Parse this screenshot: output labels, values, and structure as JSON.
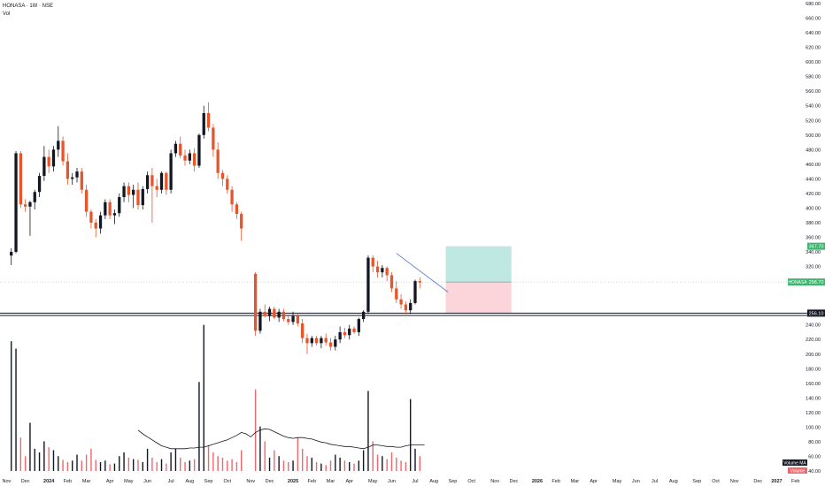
{
  "header": {
    "title": "HONASA · 1W · NSE",
    "volume_label": "Vol"
  },
  "colors": {
    "up": "#131722",
    "down": "#e8552b",
    "vol_up": "#131722",
    "vol_down": "#f0676c",
    "ma": "#131722",
    "target_zone": "#bfe8e3",
    "stop_zone": "#fbd5d9",
    "symbol_badge": "#3fb56f",
    "dark_badge": "#131722"
  },
  "chart_data": {
    "type": "candlestick",
    "price_axis": {
      "ylim": [
        40,
        680
      ],
      "ticks": [
        680,
        660,
        640,
        620,
        600,
        580,
        560,
        540,
        520,
        500,
        480,
        460,
        440,
        420,
        400,
        380,
        360,
        340,
        320,
        240,
        220,
        200,
        180,
        160,
        140,
        120,
        100,
        80,
        60,
        40
      ],
      "tick_labels": [
        "680.00",
        "660.00",
        "640.00",
        "620.00",
        "600.00",
        "580.00",
        "560.00",
        "540.00",
        "520.00",
        "500.00",
        "480.00",
        "460.00",
        "440.00",
        "420.00",
        "400.00",
        "380.00",
        "360.00",
        "340.00",
        "320.00",
        "240.00",
        "220.00",
        "200.00",
        "180.00",
        "160.00",
        "140.00",
        "120.00",
        "100.00",
        "80.00",
        "60.00",
        "40.00"
      ]
    },
    "time_axis": {
      "labels": [
        {
          "label": "Nov",
          "week": -1
        },
        {
          "label": "Dec",
          "week": 3
        },
        {
          "label": "2024",
          "week": 8,
          "bold": true
        },
        {
          "label": "Feb",
          "week": 12
        },
        {
          "label": "Mar",
          "week": 16
        },
        {
          "label": "Apr",
          "week": 21
        },
        {
          "label": "May",
          "week": 25
        },
        {
          "label": "Jun",
          "week": 29
        },
        {
          "label": "Jul",
          "week": 34
        },
        {
          "label": "Aug",
          "week": 38
        },
        {
          "label": "Sep",
          "week": 42
        },
        {
          "label": "Oct",
          "week": 46
        },
        {
          "label": "Nov",
          "week": 51
        },
        {
          "label": "Dec",
          "week": 55
        },
        {
          "label": "2025",
          "week": 60,
          "bold": true
        },
        {
          "label": "Feb",
          "week": 64
        },
        {
          "label": "Mar",
          "week": 68
        },
        {
          "label": "Apr",
          "week": 72
        },
        {
          "label": "May",
          "week": 77
        },
        {
          "label": "Jun",
          "week": 81
        },
        {
          "label": "Jul",
          "week": 86
        },
        {
          "label": "Aug",
          "week": 90
        },
        {
          "label": "Sep",
          "week": 94
        },
        {
          "label": "Oct",
          "week": 98
        },
        {
          "label": "Nov",
          "week": 103
        },
        {
          "label": "Dec",
          "week": 107
        },
        {
          "label": "2026",
          "week": 112,
          "bold": true
        },
        {
          "label": "Feb",
          "week": 116
        },
        {
          "label": "Mar",
          "week": 120
        },
        {
          "label": "Apr",
          "week": 124
        },
        {
          "label": "May",
          "week": 129
        },
        {
          "label": "Jun",
          "week": 133
        },
        {
          "label": "Jul",
          "week": 137
        },
        {
          "label": "Aug",
          "week": 141
        },
        {
          "label": "Sep",
          "week": 146
        },
        {
          "label": "Oct",
          "week": 150
        },
        {
          "label": "Nov",
          "week": 154
        },
        {
          "label": "Dec",
          "week": 159
        },
        {
          "label": "2027",
          "week": 163,
          "bold": true
        },
        {
          "label": "Feb",
          "week": 167
        }
      ],
      "week_range": [
        -2.4,
        169.5
      ]
    },
    "candles": [
      {
        "o": 335,
        "h": 345,
        "l": 322,
        "c": 340,
        "v": 175
      },
      {
        "o": 340,
        "h": 478,
        "l": 338,
        "c": 475,
        "v": 165
      },
      {
        "o": 475,
        "h": 478,
        "l": 400,
        "c": 405,
        "v": 45
      },
      {
        "o": 405,
        "h": 412,
        "l": 395,
        "c": 402,
        "v": 20
      },
      {
        "o": 402,
        "h": 410,
        "l": 362,
        "c": 408,
        "v": 65
      },
      {
        "o": 408,
        "h": 425,
        "l": 398,
        "c": 422,
        "v": 30
      },
      {
        "o": 422,
        "h": 448,
        "l": 415,
        "c": 444,
        "v": 25
      },
      {
        "o": 444,
        "h": 485,
        "l": 437,
        "c": 470,
        "v": 40
      },
      {
        "o": 470,
        "h": 480,
        "l": 448,
        "c": 457,
        "v": 32
      },
      {
        "o": 457,
        "h": 485,
        "l": 450,
        "c": 480,
        "v": 28
      },
      {
        "o": 480,
        "h": 512,
        "l": 470,
        "c": 492,
        "v": 20
      },
      {
        "o": 492,
        "h": 498,
        "l": 458,
        "c": 464,
        "v": 15
      },
      {
        "o": 464,
        "h": 475,
        "l": 432,
        "c": 440,
        "v": 12
      },
      {
        "o": 440,
        "h": 448,
        "l": 432,
        "c": 442,
        "v": 14
      },
      {
        "o": 442,
        "h": 455,
        "l": 435,
        "c": 450,
        "v": 22
      },
      {
        "o": 450,
        "h": 455,
        "l": 420,
        "c": 425,
        "v": 14
      },
      {
        "o": 425,
        "h": 432,
        "l": 388,
        "c": 395,
        "v": 22
      },
      {
        "o": 395,
        "h": 398,
        "l": 372,
        "c": 380,
        "v": 30
      },
      {
        "o": 380,
        "h": 385,
        "l": 360,
        "c": 372,
        "v": 15
      },
      {
        "o": 372,
        "h": 395,
        "l": 365,
        "c": 390,
        "v": 12
      },
      {
        "o": 390,
        "h": 412,
        "l": 385,
        "c": 408,
        "v": 14
      },
      {
        "o": 408,
        "h": 412,
        "l": 385,
        "c": 390,
        "v": 9
      },
      {
        "o": 390,
        "h": 398,
        "l": 378,
        "c": 393,
        "v": 10
      },
      {
        "o": 393,
        "h": 420,
        "l": 388,
        "c": 415,
        "v": 20
      },
      {
        "o": 415,
        "h": 435,
        "l": 408,
        "c": 430,
        "v": 25
      },
      {
        "o": 430,
        "h": 435,
        "l": 408,
        "c": 418,
        "v": 18
      },
      {
        "o": 418,
        "h": 432,
        "l": 400,
        "c": 425,
        "v": 16
      },
      {
        "o": 425,
        "h": 435,
        "l": 398,
        "c": 404,
        "v": 15
      },
      {
        "o": 404,
        "h": 430,
        "l": 398,
        "c": 426,
        "v": 12
      },
      {
        "o": 426,
        "h": 450,
        "l": 420,
        "c": 445,
        "v": 30
      },
      {
        "o": 445,
        "h": 455,
        "l": 380,
        "c": 430,
        "v": 18
      },
      {
        "o": 430,
        "h": 440,
        "l": 415,
        "c": 425,
        "v": 12
      },
      {
        "o": 425,
        "h": 450,
        "l": 420,
        "c": 448,
        "v": 16
      },
      {
        "o": 448,
        "h": 450,
        "l": 418,
        "c": 425,
        "v": 10
      },
      {
        "o": 425,
        "h": 480,
        "l": 420,
        "c": 475,
        "v": 25
      },
      {
        "o": 475,
        "h": 492,
        "l": 470,
        "c": 488,
        "v": 30
      },
      {
        "o": 488,
        "h": 498,
        "l": 468,
        "c": 472,
        "v": 18
      },
      {
        "o": 472,
        "h": 480,
        "l": 458,
        "c": 465,
        "v": 12
      },
      {
        "o": 465,
        "h": 480,
        "l": 460,
        "c": 475,
        "v": 14
      },
      {
        "o": 475,
        "h": 482,
        "l": 450,
        "c": 458,
        "v": 16
      },
      {
        "o": 458,
        "h": 502,
        "l": 455,
        "c": 500,
        "v": 120
      },
      {
        "o": 500,
        "h": 540,
        "l": 495,
        "c": 530,
        "v": 197
      },
      {
        "o": 530,
        "h": 545,
        "l": 505,
        "c": 510,
        "v": 35
      },
      {
        "o": 510,
        "h": 515,
        "l": 470,
        "c": 480,
        "v": 25
      },
      {
        "o": 480,
        "h": 490,
        "l": 440,
        "c": 448,
        "v": 20
      },
      {
        "o": 448,
        "h": 452,
        "l": 430,
        "c": 440,
        "v": 18
      },
      {
        "o": 440,
        "h": 445,
        "l": 420,
        "c": 425,
        "v": 14
      },
      {
        "o": 425,
        "h": 430,
        "l": 395,
        "c": 405,
        "v": 16
      },
      {
        "o": 405,
        "h": 408,
        "l": 385,
        "c": 392,
        "v": 12
      },
      {
        "o": 392,
        "h": 395,
        "l": 355,
        "c": 372,
        "v": 28
      },
      null,
      null,
      {
        "o": 310,
        "h": 312,
        "l": 225,
        "c": 232,
        "v": 110
      },
      {
        "o": 232,
        "h": 262,
        "l": 228,
        "c": 258,
        "v": 60
      },
      {
        "o": 258,
        "h": 268,
        "l": 250,
        "c": 252,
        "v": 40
      },
      {
        "o": 252,
        "h": 265,
        "l": 245,
        "c": 262,
        "v": 18
      },
      {
        "o": 262,
        "h": 265,
        "l": 248,
        "c": 250,
        "v": 28
      },
      {
        "o": 250,
        "h": 262,
        "l": 244,
        "c": 258,
        "v": 20
      },
      {
        "o": 258,
        "h": 262,
        "l": 245,
        "c": 248,
        "v": 14
      },
      {
        "o": 248,
        "h": 252,
        "l": 240,
        "c": 244,
        "v": 12
      },
      {
        "o": 244,
        "h": 258,
        "l": 240,
        "c": 252,
        "v": 14
      },
      {
        "o": 252,
        "h": 255,
        "l": 238,
        "c": 242,
        "v": 45
      },
      {
        "o": 242,
        "h": 248,
        "l": 215,
        "c": 222,
        "v": 30
      },
      {
        "o": 222,
        "h": 228,
        "l": 200,
        "c": 215,
        "v": 20
      },
      {
        "o": 215,
        "h": 225,
        "l": 210,
        "c": 222,
        "v": 18
      },
      {
        "o": 222,
        "h": 225,
        "l": 212,
        "c": 215,
        "v": 12
      },
      {
        "o": 215,
        "h": 225,
        "l": 208,
        "c": 222,
        "v": 10
      },
      {
        "o": 222,
        "h": 228,
        "l": 212,
        "c": 216,
        "v": 8
      },
      {
        "o": 216,
        "h": 222,
        "l": 205,
        "c": 210,
        "v": 14
      },
      {
        "o": 210,
        "h": 225,
        "l": 205,
        "c": 220,
        "v": 22
      },
      {
        "o": 220,
        "h": 238,
        "l": 215,
        "c": 230,
        "v": 18
      },
      {
        "o": 230,
        "h": 236,
        "l": 222,
        "c": 226,
        "v": 14
      },
      {
        "o": 226,
        "h": 240,
        "l": 220,
        "c": 235,
        "v": 12
      },
      {
        "o": 235,
        "h": 238,
        "l": 228,
        "c": 230,
        "v": 10
      },
      {
        "o": 230,
        "h": 250,
        "l": 225,
        "c": 248,
        "v": 14
      },
      {
        "o": 248,
        "h": 260,
        "l": 244,
        "c": 258,
        "v": 28
      },
      {
        "o": 258,
        "h": 335,
        "l": 255,
        "c": 332,
        "v": 108
      },
      {
        "o": 332,
        "h": 335,
        "l": 312,
        "c": 320,
        "v": 40
      },
      {
        "o": 320,
        "h": 328,
        "l": 305,
        "c": 312,
        "v": 22
      },
      {
        "o": 312,
        "h": 322,
        "l": 305,
        "c": 318,
        "v": 20
      },
      {
        "o": 318,
        "h": 320,
        "l": 300,
        "c": 308,
        "v": 16
      },
      {
        "o": 308,
        "h": 312,
        "l": 285,
        "c": 290,
        "v": 25
      },
      {
        "o": 290,
        "h": 300,
        "l": 270,
        "c": 275,
        "v": 18
      },
      {
        "o": 275,
        "h": 282,
        "l": 262,
        "c": 268,
        "v": 14
      },
      {
        "o": 268,
        "h": 272,
        "l": 255,
        "c": 260,
        "v": 12
      },
      {
        "o": 260,
        "h": 275,
        "l": 255,
        "c": 270,
        "v": 97
      },
      {
        "o": 270,
        "h": 302,
        "l": 268,
        "c": 300,
        "v": 30
      },
      {
        "o": 300,
        "h": 305,
        "l": 290,
        "c": 298,
        "v": 20
      }
    ],
    "volume_axis": {
      "ylim": [
        0,
        230
      ]
    },
    "volume_ma": [
      null,
      null,
      null,
      null,
      null,
      null,
      null,
      null,
      null,
      null,
      null,
      null,
      null,
      null,
      null,
      null,
      null,
      null,
      null,
      null,
      null,
      null,
      null,
      null,
      null,
      null,
      null,
      55,
      50,
      46,
      42,
      38,
      34,
      32,
      30,
      30,
      30,
      30,
      31,
      31,
      32,
      32,
      34,
      36,
      38,
      40,
      42,
      45,
      48,
      52,
      50,
      46,
      52,
      55,
      57,
      56,
      53,
      50,
      47,
      45,
      44,
      45,
      45,
      44,
      43,
      41,
      39,
      38,
      36,
      35,
      34,
      33,
      33,
      32,
      31,
      30,
      32,
      35,
      35,
      34,
      33,
      33,
      32,
      32,
      34,
      35,
      35,
      35,
      35
    ],
    "price_scale_labels": [
      {
        "label": "347.70",
        "value": 347.7,
        "kind": "target"
      },
      {
        "label": "298.70",
        "value": 298.7,
        "kind": "symbol",
        "name": "HONASA"
      },
      {
        "label": "256.10",
        "value": 256.1,
        "kind": "line"
      }
    ],
    "position_tool": {
      "entry": 298.7,
      "target": 347.7,
      "stop": 256.1,
      "start_week": 92.5,
      "end_week": 106.5
    },
    "horizontal_lines": [
      256.1,
      253
    ],
    "trendline": {
      "start": {
        "week": 82,
        "price": 338
      },
      "end": {
        "week": 93,
        "price": 285
      }
    },
    "volume_legend_label": "Volume MA",
    "volume_legend_value": "Volume"
  }
}
